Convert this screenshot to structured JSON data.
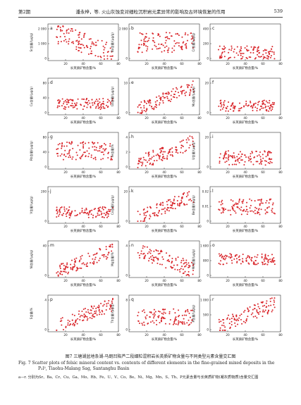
{
  "header": {
    "left": "第2期",
    "center": "潘永梓，等. 火山灰蚀变对细粒沉积岩元素异常的影响及古环境恢复的作用",
    "right": "539"
  },
  "figure": {
    "caption_cn": "图7   三塘湖盆地条湖-马朗凹陷芦二段细粒混积岩长英质矿物含量与不同类型元素含量交汇图",
    "caption_en": "Fig. 7   Scatter plots of felsic mineral content vs. contents of different elements in the fine-grained mixed deposits in the P₂l², Tiaohu-Malang Sag, Santanghu Basin",
    "note": "a—r. 分别为Sr、Ba、Cr、Cu、Ga、Mo、Rb、Fe、U、V、Co、Be、Ni、Mg、Mn、S、Th、P元素含量与长英质矿物(凝灰质物质)含量交汇图"
  },
  "chart_data": [
    {
      "panel": "a",
      "type": "scatter",
      "ylabel": "Sr含量/(μg/g)",
      "xlabel": "长英质矿物含量/%",
      "xlim": [
        0,
        80
      ],
      "ylim": [
        0,
        3000
      ],
      "yticks": [
        "0",
        "1 000",
        "2 000"
      ],
      "xticks": [
        "20",
        "40",
        "60",
        "80"
      ],
      "trend": "decreasing",
      "spread": 0.28,
      "center": 0.4
    },
    {
      "panel": "b",
      "type": "scatter",
      "ylabel": "Ba含量/(μg/g)",
      "xlabel": "长英质矿物含量/%",
      "xlim": [
        0,
        80
      ],
      "ylim": [
        0,
        4000
      ],
      "yticks": [
        "0",
        "2 000"
      ],
      "xticks": [
        "20",
        "40",
        "60",
        "80"
      ],
      "trend": "flat",
      "spread": 0.28,
      "center": 0.5
    },
    {
      "panel": "c",
      "type": "scatter",
      "ylabel": "Cr含量/(μg/g)",
      "xlabel": "长英质矿物含量/%",
      "xlim": [
        0,
        80
      ],
      "ylim": [
        0,
        600
      ],
      "yticks": [
        "0",
        "200",
        "400"
      ],
      "xticks": [
        "20",
        "40",
        "60",
        "80"
      ],
      "trend": "flat-low",
      "spread": 0.18,
      "center": 0.22
    },
    {
      "panel": "d",
      "type": "scatter",
      "ylabel": "Cu含量/(μg/g)",
      "xlabel": "长英质矿物含量/%",
      "xlim": [
        0,
        80
      ],
      "ylim": [
        0,
        120
      ],
      "yticks": [
        "0",
        "40",
        "80"
      ],
      "xticks": [
        "20",
        "40",
        "60",
        "80"
      ],
      "trend": "flat-low",
      "spread": 0.15,
      "center": 0.3
    },
    {
      "panel": "e",
      "type": "scatter",
      "ylabel": "Ga含量/(μg/g)",
      "xlabel": "长英质矿物含量/%",
      "xlim": [
        0,
        80
      ],
      "ylim": [
        0,
        20
      ],
      "yticks": [
        "0",
        "10"
      ],
      "xticks": [
        "20",
        "40",
        "60",
        "80"
      ],
      "trend": "increasing",
      "spread": 0.18,
      "center": 0.5
    },
    {
      "panel": "f",
      "type": "scatter",
      "ylabel": "Mo含量/(μg/g)",
      "xlabel": "长英质矿物含量/%",
      "xlim": [
        0,
        80
      ],
      "ylim": [
        0,
        40
      ],
      "yticks": [
        "0",
        "20"
      ],
      "xticks": [
        "20",
        "40",
        "60",
        "80"
      ],
      "trend": "flat-low",
      "spread": 0.15,
      "center": 0.25
    },
    {
      "panel": "g",
      "type": "scatter",
      "ylabel": "Rb含量/(μg/g)",
      "xlabel": "长英质矿物含量/%",
      "xlim": [
        0,
        80
      ],
      "ylim": [
        0,
        100
      ],
      "yticks": [
        "0",
        "40",
        "80"
      ],
      "xticks": [
        "20",
        "40",
        "60",
        "80"
      ],
      "trend": "flat",
      "spread": 0.25,
      "center": 0.5
    },
    {
      "panel": "h",
      "type": "scatter",
      "ylabel": "Fe含量/%",
      "xlabel": "长英质矿物含量/%",
      "xlim": [
        0,
        80
      ],
      "ylim": [
        0,
        6
      ],
      "yticks": [
        "0",
        "2",
        "4"
      ],
      "xticks": [
        "20",
        "40",
        "60",
        "80"
      ],
      "trend": "increasing",
      "spread": 0.2,
      "center": 0.45
    },
    {
      "panel": "i",
      "type": "scatter",
      "ylabel": "U含量/(μg/g)",
      "xlabel": "长英质矿物含量/%",
      "xlim": [
        0,
        80
      ],
      "ylim": [
        0,
        40
      ],
      "yticks": [
        "0",
        "20"
      ],
      "xticks": [
        "20",
        "40",
        "60",
        "80"
      ],
      "trend": "flat-low",
      "spread": 0.2,
      "center": 0.3
    },
    {
      "panel": "j",
      "type": "scatter",
      "ylabel": "V含量/(μg/g)",
      "xlabel": "长英质矿物含量/%",
      "xlim": [
        0,
        80
      ],
      "ylim": [
        0,
        400
      ],
      "yticks": [
        "0",
        "200"
      ],
      "xticks": [
        "20",
        "40",
        "60",
        "80"
      ],
      "trend": "flat-low",
      "spread": 0.15,
      "center": 0.3
    },
    {
      "panel": "k",
      "type": "scatter",
      "ylabel": "Co含量/(μg/g)",
      "xlabel": "长英质矿物含量/%",
      "xlim": [
        0,
        80
      ],
      "ylim": [
        0,
        40
      ],
      "yticks": [
        "0",
        "20"
      ],
      "xticks": [
        "20",
        "40",
        "60",
        "80"
      ],
      "trend": "increasing",
      "spread": 0.18,
      "center": 0.45
    },
    {
      "panel": "l",
      "type": "scatter",
      "ylabel": "Be含量/(μg/g)",
      "xlabel": "长英质矿物含量/%",
      "xlim": [
        0,
        80
      ],
      "ylim": [
        0,
        0.02
      ],
      "yticks": [
        "0",
        "0.01",
        "0.02"
      ],
      "xticks": [
        "20",
        "40",
        "60",
        "80"
      ],
      "trend": "flat",
      "spread": 0.22,
      "center": 0.45
    },
    {
      "panel": "m",
      "type": "scatter",
      "ylabel": "Ni含量/(μg/g)",
      "xlabel": "长英质矿物含量/%",
      "xlim": [
        0,
        80
      ],
      "ylim": [
        0,
        80
      ],
      "yticks": [
        "0",
        "40"
      ],
      "xticks": [
        "20",
        "40",
        "60",
        "80"
      ],
      "trend": "increasing",
      "spread": 0.18,
      "center": 0.45
    },
    {
      "panel": "n",
      "type": "scatter",
      "ylabel": "Mg含量/%",
      "xlabel": "长英质矿物含量/%",
      "xlim": [
        0,
        80
      ],
      "ylim": [
        0,
        8
      ],
      "yticks": [
        "0",
        "4"
      ],
      "xticks": [
        "20",
        "40",
        "60",
        "80"
      ],
      "trend": "decreasing",
      "spread": 0.22,
      "center": 0.45
    },
    {
      "panel": "o",
      "type": "scatter",
      "ylabel": "Mn含量/(μg/g)",
      "xlabel": "长英质矿物含量/%",
      "xlim": [
        0,
        80
      ],
      "ylim": [
        0,
        1600
      ],
      "yticks": [
        "0",
        "800",
        "1 600"
      ],
      "xticks": [
        "20",
        "40",
        "60",
        "80"
      ],
      "trend": "flat",
      "spread": 0.15,
      "center": 0.5
    },
    {
      "panel": "p",
      "type": "scatter",
      "ylabel": "S含量/%",
      "xlabel": "长英质矿物含量/%",
      "xlim": [
        0,
        80
      ],
      "ylim": [
        0,
        8
      ],
      "yticks": [
        "0",
        "4"
      ],
      "xticks": [
        "20",
        "40",
        "60",
        "80"
      ],
      "trend": "increasing",
      "spread": 0.18,
      "center": 0.4
    },
    {
      "panel": "q",
      "type": "scatter",
      "ylabel": "Th含量/(μg/g)",
      "xlabel": "长英质矿物含量/%",
      "xlim": [
        0,
        80
      ],
      "ylim": [
        0,
        16
      ],
      "yticks": [
        "0",
        "8"
      ],
      "xticks": [
        "20",
        "40",
        "60",
        "80"
      ],
      "trend": "flat",
      "spread": 0.22,
      "center": 0.4
    },
    {
      "panel": "r",
      "type": "scatter",
      "ylabel": "P含量/(μg/g)",
      "xlabel": "长英质矿物含量/%",
      "xlim": [
        0,
        80
      ],
      "ylim": [
        0,
        1000
      ],
      "yticks": [
        "0",
        "500",
        "1 000"
      ],
      "xticks": [
        "20",
        "40",
        "60",
        "80"
      ],
      "trend": "increasing",
      "spread": 0.2,
      "center": 0.4
    }
  ],
  "colors": {
    "marker": "#d9252a",
    "axis": "#333333",
    "text": "#222222"
  }
}
